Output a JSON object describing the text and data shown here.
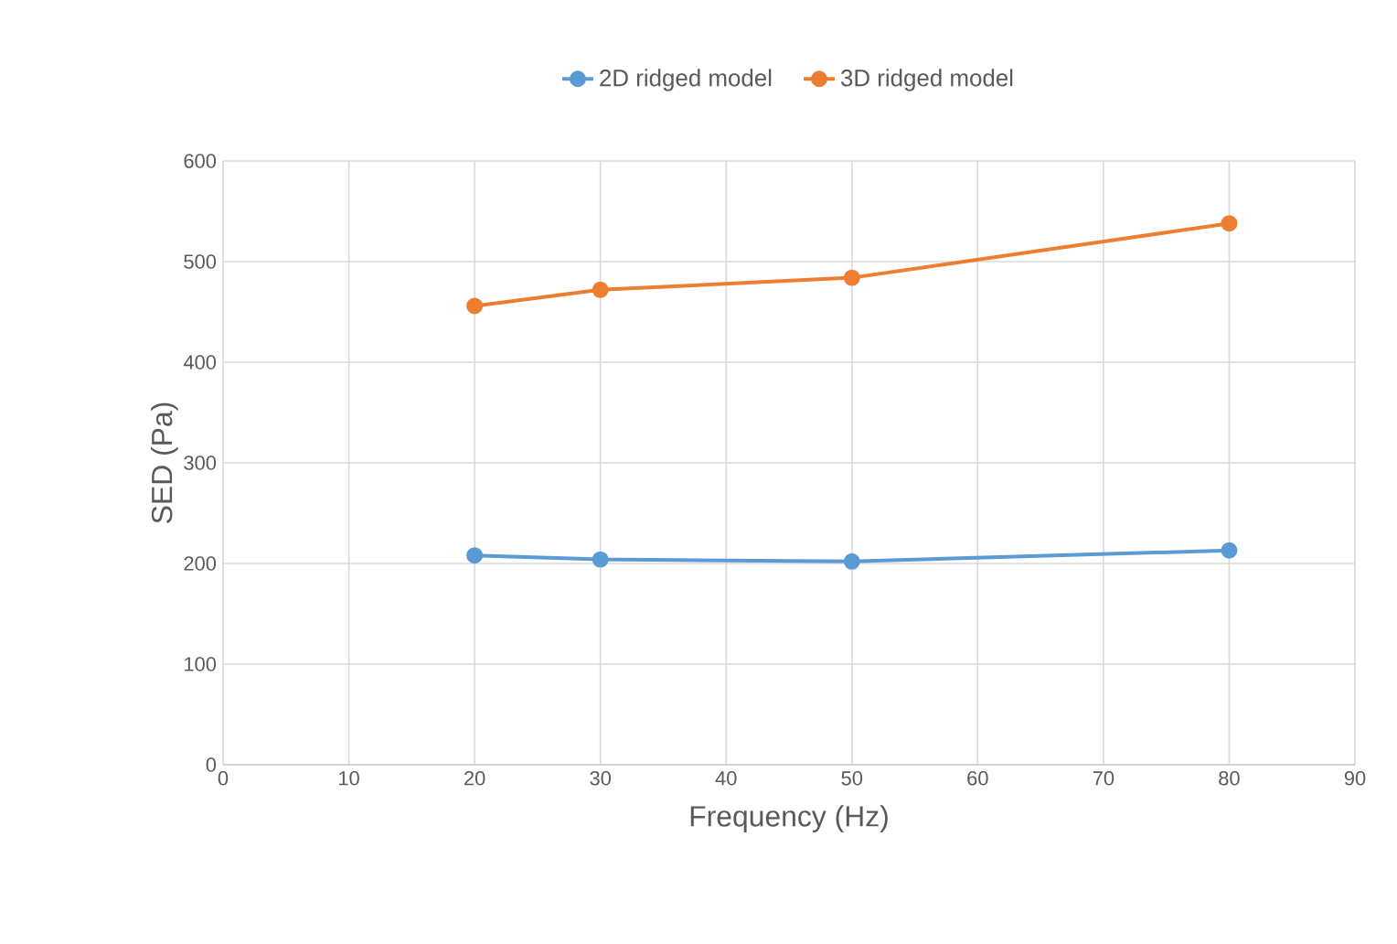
{
  "chart_data": {
    "type": "line",
    "xlabel": "Frequency (Hz)",
    "ylabel": "SED (Pa)",
    "series": [
      {
        "name": "2D ridged model",
        "color": "#5b9bd5",
        "x": [
          20,
          30,
          50,
          80
        ],
        "values": [
          208,
          204,
          202,
          213
        ]
      },
      {
        "name": "3D ridged model",
        "color": "#ed7d31",
        "x": [
          20,
          30,
          50,
          80
        ],
        "values": [
          456,
          472,
          484,
          538
        ]
      }
    ],
    "xlim": [
      0,
      90
    ],
    "xticks": [
      0,
      10,
      20,
      30,
      40,
      50,
      60,
      70,
      80,
      90
    ],
    "ylim": [
      0,
      600
    ],
    "yticks": [
      0,
      100,
      200,
      300,
      400,
      500,
      600
    ],
    "grid": true,
    "legend": "top",
    "marker": "circle"
  }
}
